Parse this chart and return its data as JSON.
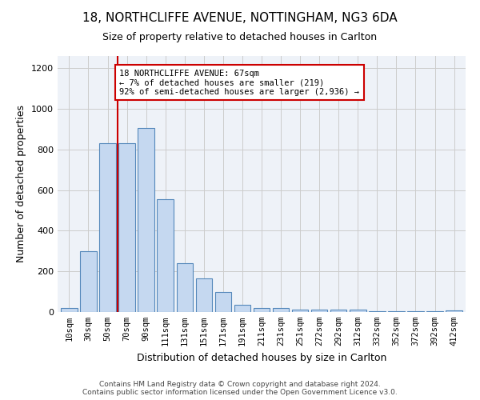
{
  "title1": "18, NORTHCLIFFE AVENUE, NOTTINGHAM, NG3 6DA",
  "title2": "Size of property relative to detached houses in Carlton",
  "xlabel": "Distribution of detached houses by size in Carlton",
  "ylabel": "Number of detached properties",
  "bar_labels": [
    "10sqm",
    "30sqm",
    "50sqm",
    "70sqm",
    "90sqm",
    "111sqm",
    "131sqm",
    "151sqm",
    "171sqm",
    "191sqm",
    "211sqm",
    "231sqm",
    "251sqm",
    "272sqm",
    "292sqm",
    "312sqm",
    "332sqm",
    "352sqm",
    "372sqm",
    "392sqm",
    "412sqm"
  ],
  "bar_values": [
    20,
    300,
    830,
    830,
    905,
    555,
    240,
    165,
    100,
    35,
    20,
    20,
    12,
    10,
    10,
    10,
    5,
    5,
    5,
    5,
    8
  ],
  "bar_color": "#c5d8f0",
  "bar_edge_color": "#5588bb",
  "grid_color": "#cccccc",
  "annotation_text": "18 NORTHCLIFFE AVENUE: 67sqm\n← 7% of detached houses are smaller (219)\n92% of semi-detached houses are larger (2,936) →",
  "annotation_box_color": "#ffffff",
  "annotation_box_edge": "#cc0000",
  "red_line_color": "#cc0000",
  "ylim": [
    0,
    1260
  ],
  "yticks": [
    0,
    200,
    400,
    600,
    800,
    1000,
    1200
  ],
  "footer1": "Contains HM Land Registry data © Crown copyright and database right 2024.",
  "footer2": "Contains public sector information licensed under the Open Government Licence v3.0.",
  "bg_color": "#eef2f8"
}
